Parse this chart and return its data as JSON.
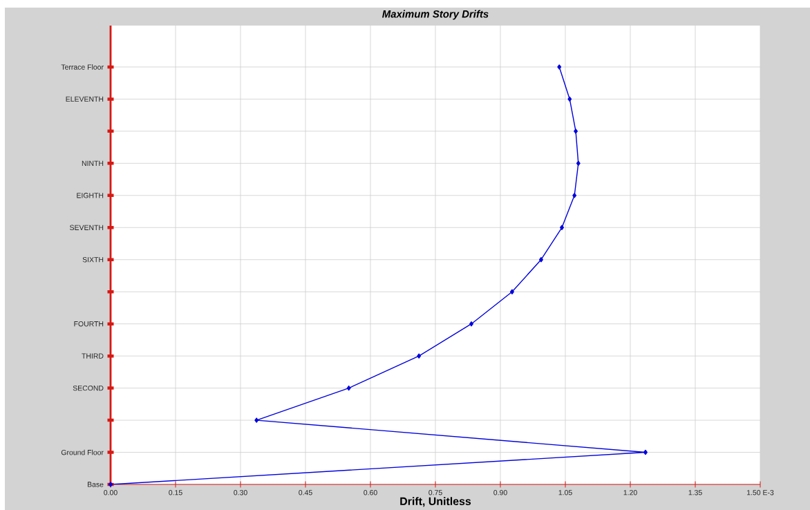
{
  "chart_data": {
    "type": "line",
    "orientation": "horizontal",
    "title": "Maximum Story Drifts",
    "xlabel": "Drift, Unitless",
    "categories": [
      "Terrace Floor",
      "ELEVENTH",
      null,
      "NINTH",
      "EIGHTH",
      "SEVENTH",
      "SIXTH",
      null,
      "FOURTH",
      "THIRD",
      "SECOND",
      null,
      "Ground Floor",
      "Base"
    ],
    "values": [
      1.036,
      1.06,
      1.074,
      1.08,
      1.071,
      1.042,
      0.994,
      0.927,
      0.833,
      0.712,
      0.55,
      0.337,
      1.235,
      0
    ],
    "color": "#0000dd",
    "xlim": [
      0,
      1.5
    ],
    "xticks": [
      {
        "value": 0,
        "label": "0.00"
      },
      {
        "value": 0.15,
        "label": "0.15"
      },
      {
        "value": 0.3,
        "label": "0.30"
      },
      {
        "value": 0.45,
        "label": "0.45"
      },
      {
        "value": 0.6,
        "label": "0.60"
      },
      {
        "value": 0.75,
        "label": "0.75"
      },
      {
        "value": 0.9,
        "label": "0.90"
      },
      {
        "value": 1.05,
        "label": "1.05"
      },
      {
        "value": 1.2,
        "label": "1.20"
      },
      {
        "value": 1.35,
        "label": "1.35"
      },
      {
        "value": 1.5,
        "label": "1.50 E-3"
      }
    ],
    "grid": true,
    "marker": "diamond",
    "line_style": "solid"
  }
}
